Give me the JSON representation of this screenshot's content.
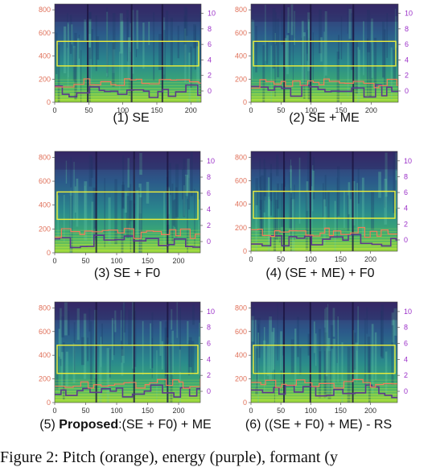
{
  "panels": [
    {
      "caption": "(1) SE",
      "xticks": [
        "0",
        "50",
        "100",
        "150",
        "200"
      ],
      "yticks": [
        "0",
        "200",
        "400",
        "600",
        "800"
      ],
      "y2ticks": [
        "0",
        "2",
        "4",
        "6",
        "8",
        "10"
      ],
      "xmax": 215
    },
    {
      "caption": "(2) SE + ME",
      "xticks": [
        "0",
        "50",
        "100",
        "150",
        "200"
      ],
      "yticks": [
        "0",
        "200",
        "400",
        "600",
        "800"
      ],
      "y2ticks": [
        "0",
        "2",
        "4",
        "6",
        "8",
        "10"
      ],
      "xmax": 245
    },
    {
      "caption": "(3) SE + F0",
      "xticks": [
        "0",
        "50",
        "100",
        "150",
        "200"
      ],
      "yticks": [
        "0",
        "200",
        "400",
        "600",
        "800"
      ],
      "y2ticks": [
        "0",
        "2",
        "4",
        "6",
        "8",
        "10"
      ],
      "xmax": 235
    },
    {
      "caption": "(4) (SE + ME) + F0",
      "xticks": [
        "0",
        "50",
        "100",
        "150",
        "200"
      ],
      "yticks": [
        "0",
        "200",
        "400",
        "600",
        "800"
      ],
      "y2ticks": [
        "0",
        "2",
        "4",
        "6",
        "8",
        "10"
      ],
      "xmax": 245
    },
    {
      "caption_pre": "(5) ",
      "caption_bold": "Proposed",
      "caption_post": ":(SE + F0) + ME",
      "xticks": [
        "0",
        "50",
        "100",
        "150",
        "200"
      ],
      "yticks": [
        "0",
        "200",
        "400",
        "600",
        "800"
      ],
      "y2ticks": [
        "0",
        "2",
        "4",
        "6",
        "8",
        "10"
      ],
      "xmax": 235
    },
    {
      "caption": "(6) ((SE + F0) + ME) - RS",
      "xticks": [
        "0",
        "50",
        "100",
        "150",
        "200"
      ],
      "yticks": [
        "0",
        "200",
        "400",
        "600",
        "800"
      ],
      "y2ticks": [
        "0",
        "2",
        "4",
        "6",
        "8",
        "10"
      ],
      "xmax": 245
    }
  ],
  "figure_caption": "Figure 2: Pitch (orange), energy (purple), formant (y",
  "colors": {
    "spectrogram_dark": "#2b1a55",
    "spectrogram_mid": "#2a7f8a",
    "spectrogram_bright": "#7fd34e",
    "pitch": "#f07c5a",
    "energy": "#5b3a8c",
    "formant_box": "#f0f03a",
    "left_axis": "#e0715a",
    "right_axis": "#9b30c8"
  }
}
